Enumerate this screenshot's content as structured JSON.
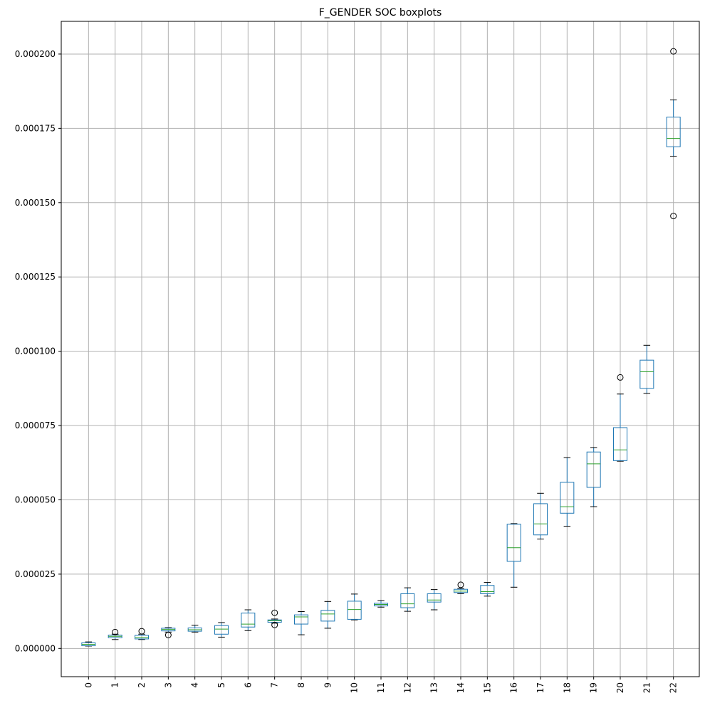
{
  "chart_data": {
    "type": "boxplot",
    "title": "F_GENDER SOC boxplots",
    "xlabel": "",
    "ylabel": "",
    "grid": true,
    "ylim": [
      -9.5e-06,
      0.000211
    ],
    "y_ticks": [
      0.0,
      2.5e-05,
      5e-05,
      7.5e-05,
      0.0001,
      0.000125,
      0.00015,
      0.000175,
      0.0002
    ],
    "y_tick_labels": [
      "0.000000",
      "0.000025",
      "0.000050",
      "0.000075",
      "0.000100",
      "0.000125",
      "0.000150",
      "0.000175",
      "0.000200"
    ],
    "categories": [
      "0",
      "1",
      "2",
      "3",
      "4",
      "5",
      "6",
      "7",
      "8",
      "9",
      "10",
      "11",
      "12",
      "13",
      "14",
      "15",
      "16",
      "17",
      "18",
      "19",
      "20",
      "21",
      "22"
    ],
    "box_color": "#1f77b4",
    "median_color": "#2ca02c",
    "grid_color": "#b0b0b0",
    "boxes": [
      {
        "whislo": 8e-07,
        "q1": 9e-07,
        "med": 1.4e-06,
        "q3": 1.9e-06,
        "whishi": 2.2e-06,
        "fliers": []
      },
      {
        "whislo": 3e-06,
        "q1": 3.6e-06,
        "med": 4.1e-06,
        "q3": 4.5e-06,
        "whishi": 4.8e-06,
        "fliers": [
          5.5e-06
        ]
      },
      {
        "whislo": 3e-06,
        "q1": 3.2e-06,
        "med": 3.7e-06,
        "q3": 4.4e-06,
        "whishi": 4.8e-06,
        "fliers": [
          5.8e-06
        ]
      },
      {
        "whislo": 5.5e-06,
        "q1": 5.9e-06,
        "med": 6.4e-06,
        "q3": 6.8e-06,
        "whishi": 7e-06,
        "fliers": [
          4.5e-06
        ]
      },
      {
        "whislo": 5.5e-06,
        "q1": 5.8e-06,
        "med": 6.3e-06,
        "q3": 6.9e-06,
        "whishi": 7.8e-06,
        "fliers": []
      },
      {
        "whislo": 3.8e-06,
        "q1": 4.8e-06,
        "med": 6.5e-06,
        "q3": 7.7e-06,
        "whishi": 8.7e-06,
        "fliers": []
      },
      {
        "whislo": 6e-06,
        "q1": 7.2e-06,
        "med": 8.2e-06,
        "q3": 1.19e-05,
        "whishi": 1.3e-05,
        "fliers": []
      },
      {
        "whislo": 8.5e-06,
        "q1": 8.8e-06,
        "med": 9.3e-06,
        "q3": 9.6e-06,
        "whishi": 9.9e-06,
        "fliers": [
          1.2e-05,
          7.9e-06
        ]
      },
      {
        "whislo": 4.6e-06,
        "q1": 8.2e-06,
        "med": 1.06e-05,
        "q3": 1.13e-05,
        "whishi": 1.24e-05,
        "fliers": []
      },
      {
        "whislo": 6.8e-06,
        "q1": 9.2e-06,
        "med": 1.16e-05,
        "q3": 1.28e-05,
        "whishi": 1.58e-05,
        "fliers": []
      },
      {
        "whislo": 9.6e-06,
        "q1": 9.8e-06,
        "med": 1.31e-05,
        "q3": 1.59e-05,
        "whishi": 1.83e-05,
        "fliers": []
      },
      {
        "whislo": 1.39e-05,
        "q1": 1.43e-05,
        "med": 1.48e-05,
        "q3": 1.52e-05,
        "whishi": 1.61e-05,
        "fliers": []
      },
      {
        "whislo": 1.25e-05,
        "q1": 1.37e-05,
        "med": 1.5e-05,
        "q3": 1.84e-05,
        "whishi": 2.04e-05,
        "fliers": []
      },
      {
        "whislo": 1.3e-05,
        "q1": 1.56e-05,
        "med": 1.63e-05,
        "q3": 1.84e-05,
        "whishi": 1.98e-05,
        "fliers": []
      },
      {
        "whislo": 1.84e-05,
        "q1": 1.88e-05,
        "med": 1.93e-05,
        "q3": 1.99e-05,
        "whishi": 2.02e-05,
        "fliers": [
          2.14e-05
        ]
      },
      {
        "whislo": 1.76e-05,
        "q1": 1.84e-05,
        "med": 1.91e-05,
        "q3": 2.12e-05,
        "whishi": 2.22e-05,
        "fliers": []
      },
      {
        "whislo": 2.06e-05,
        "q1": 2.93e-05,
        "med": 3.39e-05,
        "q3": 4.18e-05,
        "whishi": 4.2e-05,
        "fliers": []
      },
      {
        "whislo": 3.68e-05,
        "q1": 3.82e-05,
        "med": 4.19e-05,
        "q3": 4.87e-05,
        "whishi": 5.22e-05,
        "fliers": []
      },
      {
        "whislo": 4.11e-05,
        "q1": 4.55e-05,
        "med": 4.77e-05,
        "q3": 5.59e-05,
        "whishi": 6.42e-05,
        "fliers": []
      },
      {
        "whislo": 4.77e-05,
        "q1": 5.42e-05,
        "med": 6.21e-05,
        "q3": 6.61e-05,
        "whishi": 6.76e-05,
        "fliers": []
      },
      {
        "whislo": 6.3e-05,
        "q1": 6.32e-05,
        "med": 6.68e-05,
        "q3": 7.43e-05,
        "whishi": 8.56e-05,
        "fliers": [
          9.12e-05
        ]
      },
      {
        "whislo": 8.58e-05,
        "q1": 8.75e-05,
        "med": 9.31e-05,
        "q3": 9.7e-05,
        "whishi": 0.000102,
        "fliers": []
      },
      {
        "whislo": 0.0001656,
        "q1": 0.0001688,
        "med": 0.0001716,
        "q3": 0.0001788,
        "whishi": 0.0001846,
        "fliers": [
          0.0002009,
          0.0001455
        ]
      }
    ]
  }
}
